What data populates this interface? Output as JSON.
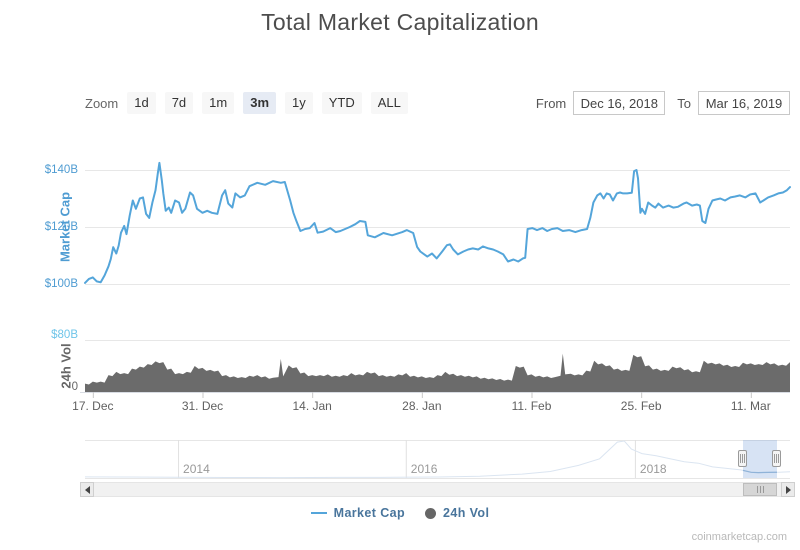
{
  "title": "Total Market Capitalization",
  "controls": {
    "zoom_label": "Zoom",
    "zoom_buttons": [
      {
        "label": "1d",
        "active": false
      },
      {
        "label": "7d",
        "active": false
      },
      {
        "label": "1m",
        "active": false
      },
      {
        "label": "3m",
        "active": true
      },
      {
        "label": "1y",
        "active": false
      },
      {
        "label": "YTD",
        "active": false
      },
      {
        "label": "ALL",
        "active": false
      }
    ],
    "from_label": "From",
    "from_value": "Dec 16, 2018",
    "to_label": "To",
    "to_value": "Mar 16, 2019"
  },
  "chart_data": [
    {
      "type": "line",
      "name": "Market Cap",
      "title": "Total Market Capitalization",
      "color": "#54a5da",
      "ylabel": "Market Cap",
      "unit": "USD billions",
      "ylim": [
        88,
        148
      ],
      "y_ticks": [
        {
          "value": 100,
          "label": "$100B"
        },
        {
          "value": 120,
          "label": "$120B"
        },
        {
          "value": 140,
          "label": "$140B"
        }
      ],
      "x_range": [
        "Dec 16, 2018",
        "Mar 16, 2019"
      ],
      "x_ticks": [
        {
          "day": 1,
          "label": "17. Dec"
        },
        {
          "day": 15,
          "label": "31. Dec"
        },
        {
          "day": 29,
          "label": "14. Jan"
        },
        {
          "day": 43,
          "label": "28. Jan"
        },
        {
          "day": 57,
          "label": "11. Feb"
        },
        {
          "day": 71,
          "label": "25. Feb"
        },
        {
          "day": 85,
          "label": "11. Mar"
        }
      ],
      "points": [
        [
          0,
          100.4
        ],
        [
          0.5,
          101.8
        ],
        [
          1,
          102.3
        ],
        [
          1.5,
          100.9
        ],
        [
          2,
          100.6
        ],
        [
          2.5,
          103
        ],
        [
          3,
          106.2
        ],
        [
          3.3,
          108.8
        ],
        [
          3.6,
          112.9
        ],
        [
          4,
          110.7
        ],
        [
          4.3,
          113.5
        ],
        [
          4.6,
          118
        ],
        [
          5,
          120.4
        ],
        [
          5.3,
          117.5
        ],
        [
          5.7,
          124
        ],
        [
          6.1,
          129.3
        ],
        [
          6.5,
          126.4
        ],
        [
          7,
          130
        ],
        [
          7.4,
          130.4
        ],
        [
          7.8,
          124.6
        ],
        [
          8.2,
          123.2
        ],
        [
          8.6,
          128.6
        ],
        [
          9,
          132.9
        ],
        [
          9.3,
          139
        ],
        [
          9.5,
          142.5
        ],
        [
          9.8,
          136.4
        ],
        [
          10,
          131.8
        ],
        [
          10.3,
          125.7
        ],
        [
          10.7,
          126.8
        ],
        [
          11,
          125
        ],
        [
          11.5,
          129.3
        ],
        [
          12,
          128.6
        ],
        [
          12.4,
          125
        ],
        [
          12.8,
          126.4
        ],
        [
          13.4,
          132.1
        ],
        [
          13.8,
          131.1
        ],
        [
          14.3,
          126.4
        ],
        [
          15,
          125
        ],
        [
          15.6,
          125.7
        ],
        [
          16.2,
          125
        ],
        [
          16.9,
          124.6
        ],
        [
          17.5,
          131.1
        ],
        [
          17.9,
          132.9
        ],
        [
          18.3,
          128.2
        ],
        [
          18.8,
          126.8
        ],
        [
          19.2,
          131.8
        ],
        [
          19.8,
          130.4
        ],
        [
          20.4,
          131.1
        ],
        [
          21,
          134.3
        ],
        [
          22,
          135.5
        ],
        [
          23,
          134.8
        ],
        [
          24,
          136.1
        ],
        [
          25,
          135.5
        ],
        [
          25.5,
          135.8
        ],
        [
          26.2,
          129.3
        ],
        [
          26.6,
          125
        ],
        [
          27,
          122
        ],
        [
          27.5,
          118.6
        ],
        [
          28.1,
          119.3
        ],
        [
          28.7,
          119.6
        ],
        [
          29.3,
          121.4
        ],
        [
          29.7,
          118
        ],
        [
          30.4,
          118.4
        ],
        [
          31.3,
          119.6
        ],
        [
          32,
          118.2
        ],
        [
          32.6,
          118.6
        ],
        [
          33.8,
          120
        ],
        [
          34.5,
          121
        ],
        [
          35.1,
          122.1
        ],
        [
          35.8,
          121.8
        ],
        [
          36.1,
          117.1
        ],
        [
          37,
          116.4
        ],
        [
          38.1,
          117.9
        ],
        [
          39.2,
          117.1
        ],
        [
          40.5,
          118.2
        ],
        [
          41.1,
          118.9
        ],
        [
          41.9,
          117.9
        ],
        [
          42.4,
          113
        ],
        [
          42.8,
          111.4
        ],
        [
          43.7,
          109.6
        ],
        [
          44.3,
          110.7
        ],
        [
          44.9,
          109
        ],
        [
          45.6,
          111.4
        ],
        [
          46.2,
          113.6
        ],
        [
          46.6,
          113.9
        ],
        [
          47,
          112.1
        ],
        [
          47.6,
          110.4
        ],
        [
          48.3,
          111.4
        ],
        [
          48.9,
          112.1
        ],
        [
          49.5,
          112.5
        ],
        [
          50.2,
          112.1
        ],
        [
          50.8,
          113.2
        ],
        [
          51.5,
          112.5
        ],
        [
          52.1,
          112.1
        ],
        [
          52.7,
          111.4
        ],
        [
          53.4,
          110.4
        ],
        [
          54,
          107.9
        ],
        [
          54.7,
          108.6
        ],
        [
          55.3,
          107.9
        ],
        [
          55.9,
          109
        ],
        [
          56.2,
          109.2
        ],
        [
          56.5,
          119.3
        ],
        [
          57.1,
          119.6
        ],
        [
          57.7,
          118.9
        ],
        [
          58.4,
          119.6
        ],
        [
          59,
          118.6
        ],
        [
          59.6,
          119.3
        ],
        [
          60.3,
          119.6
        ],
        [
          61,
          118.6
        ],
        [
          61.8,
          118.9
        ],
        [
          62.6,
          118.2
        ],
        [
          63.4,
          118.9
        ],
        [
          64.1,
          119.3
        ],
        [
          64.5,
          123.2
        ],
        [
          64.9,
          128.6
        ],
        [
          65.4,
          131.1
        ],
        [
          65.8,
          131.8
        ],
        [
          66.2,
          130
        ],
        [
          66.6,
          131.8
        ],
        [
          67,
          131.4
        ],
        [
          67.4,
          129.3
        ],
        [
          67.9,
          131.8
        ],
        [
          68.3,
          132.1
        ],
        [
          68.7,
          131.8
        ],
        [
          69.2,
          131.8
        ],
        [
          69.8,
          132
        ],
        [
          70.1,
          139.6
        ],
        [
          70.4,
          140
        ],
        [
          70.6,
          137.1
        ],
        [
          70.9,
          125
        ],
        [
          71.1,
          126.4
        ],
        [
          71.5,
          124.6
        ],
        [
          71.9,
          128.6
        ],
        [
          72.4,
          127.5
        ],
        [
          72.8,
          126.8
        ],
        [
          73.2,
          128.2
        ],
        [
          73.8,
          126.8
        ],
        [
          74.5,
          127.5
        ],
        [
          75.1,
          126.8
        ],
        [
          75.7,
          127.1
        ],
        [
          76.4,
          128.2
        ],
        [
          76.8,
          128.6
        ],
        [
          77.5,
          127.5
        ],
        [
          78.1,
          127.9
        ],
        [
          78.5,
          127.5
        ],
        [
          78.8,
          122.1
        ],
        [
          79.2,
          121.4
        ],
        [
          79.6,
          126.4
        ],
        [
          80.1,
          129.3
        ],
        [
          80.5,
          129.6
        ],
        [
          81.1,
          130
        ],
        [
          81.7,
          129.3
        ],
        [
          82.4,
          130.4
        ],
        [
          83,
          130.7
        ],
        [
          83.6,
          131.1
        ],
        [
          84.3,
          130.4
        ],
        [
          84.9,
          131.4
        ],
        [
          85.6,
          131.8
        ],
        [
          86.2,
          128.6
        ],
        [
          86.6,
          129.3
        ],
        [
          87.2,
          130.4
        ],
        [
          87.9,
          131.1
        ],
        [
          88.5,
          131.8
        ],
        [
          89.1,
          132.1
        ],
        [
          89.6,
          132.9
        ],
        [
          90,
          134
        ]
      ]
    },
    {
      "type": "area",
      "name": "24h Vol",
      "color": "#6b6b6b",
      "ylabel": "24h Vol",
      "unit": "USD billions",
      "ylim": [
        0,
        80
      ],
      "y_ticks": [
        {
          "value": 0,
          "label": "0"
        },
        {
          "value": 80,
          "label": "$80B"
        }
      ],
      "points": [
        [
          0,
          13
        ],
        [
          1,
          16
        ],
        [
          2,
          16
        ],
        [
          3,
          26
        ],
        [
          4,
          31
        ],
        [
          5,
          29
        ],
        [
          6,
          36
        ],
        [
          7,
          39
        ],
        [
          8,
          43
        ],
        [
          9,
          47
        ],
        [
          10,
          46
        ],
        [
          11,
          36
        ],
        [
          12,
          29
        ],
        [
          13,
          31
        ],
        [
          14,
          40
        ],
        [
          15,
          37
        ],
        [
          16,
          34
        ],
        [
          17,
          33
        ],
        [
          18,
          26
        ],
        [
          19,
          24
        ],
        [
          20,
          23
        ],
        [
          21,
          25
        ],
        [
          22,
          26
        ],
        [
          23,
          24
        ],
        [
          24,
          22
        ],
        [
          24.7,
          23
        ],
        [
          25,
          51
        ],
        [
          25.3,
          24
        ],
        [
          26,
          41
        ],
        [
          27,
          38
        ],
        [
          28,
          30
        ],
        [
          29,
          26
        ],
        [
          30,
          26
        ],
        [
          31,
          27
        ],
        [
          32,
          25
        ],
        [
          33,
          26
        ],
        [
          34,
          29
        ],
        [
          35,
          27
        ],
        [
          36,
          31
        ],
        [
          37,
          30
        ],
        [
          38,
          26
        ],
        [
          39,
          25
        ],
        [
          40,
          27
        ],
        [
          41,
          29
        ],
        [
          42,
          25
        ],
        [
          43,
          24
        ],
        [
          44,
          23
        ],
        [
          45,
          26
        ],
        [
          46,
          31
        ],
        [
          47,
          28
        ],
        [
          48,
          26
        ],
        [
          49,
          25
        ],
        [
          50,
          24
        ],
        [
          51,
          22
        ],
        [
          52,
          21
        ],
        [
          53,
          20
        ],
        [
          54,
          19
        ],
        [
          55,
          40
        ],
        [
          56,
          39
        ],
        [
          57,
          27
        ],
        [
          58,
          25
        ],
        [
          59,
          24
        ],
        [
          60,
          23
        ],
        [
          60.7,
          25
        ],
        [
          61,
          59
        ],
        [
          61.3,
          27
        ],
        [
          62,
          28
        ],
        [
          63,
          27
        ],
        [
          64,
          33
        ],
        [
          65,
          48
        ],
        [
          66,
          44
        ],
        [
          67,
          41
        ],
        [
          68,
          36
        ],
        [
          69,
          34
        ],
        [
          70,
          57
        ],
        [
          71,
          55
        ],
        [
          72,
          41
        ],
        [
          73,
          36
        ],
        [
          74,
          34
        ],
        [
          75,
          39
        ],
        [
          76,
          38
        ],
        [
          77,
          35
        ],
        [
          78,
          32
        ],
        [
          79,
          48
        ],
        [
          80,
          45
        ],
        [
          81,
          44
        ],
        [
          82,
          42
        ],
        [
          83,
          40
        ],
        [
          84,
          45
        ],
        [
          85,
          44
        ],
        [
          86,
          43
        ],
        [
          87,
          46
        ],
        [
          88,
          44
        ],
        [
          89,
          42
        ],
        [
          90,
          46
        ]
      ]
    }
  ],
  "navigator": {
    "year_labels": [
      "2014",
      "2016",
      "2018"
    ],
    "history": [
      [
        0,
        0.03
      ],
      [
        0.06,
        0.026
      ],
      [
        0.13,
        0.02
      ],
      [
        0.2,
        0.014
      ],
      [
        0.28,
        0.012
      ],
      [
        0.36,
        0.016
      ],
      [
        0.44,
        0.02
      ],
      [
        0.5,
        0.026
      ],
      [
        0.56,
        0.048
      ],
      [
        0.62,
        0.105
      ],
      [
        0.66,
        0.175
      ],
      [
        0.7,
        0.34
      ],
      [
        0.73,
        0.52
      ],
      [
        0.755,
        0.97
      ],
      [
        0.765,
        1.0
      ],
      [
        0.775,
        0.78
      ],
      [
        0.79,
        0.66
      ],
      [
        0.81,
        0.6
      ],
      [
        0.83,
        0.52
      ],
      [
        0.85,
        0.44
      ],
      [
        0.87,
        0.4
      ],
      [
        0.89,
        0.3
      ],
      [
        0.91,
        0.26
      ],
      [
        0.93,
        0.22
      ],
      [
        0.945,
        0.155
      ],
      [
        0.955,
        0.145
      ],
      [
        0.97,
        0.15
      ],
      [
        0.985,
        0.158
      ],
      [
        1,
        0.168
      ]
    ]
  },
  "legend": [
    {
      "label": "Market Cap",
      "marker": "line",
      "color": "#54a5da"
    },
    {
      "label": "24h Vol",
      "marker": "circle",
      "color": "#666666"
    }
  ],
  "watermark": "coinmarketcap.com"
}
